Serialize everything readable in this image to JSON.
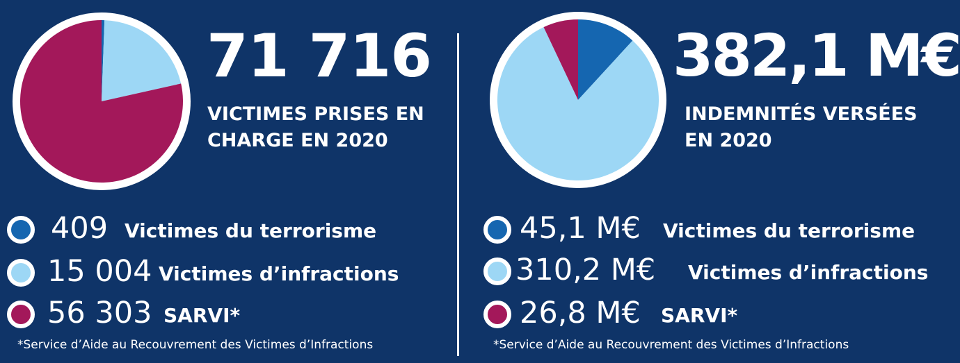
{
  "chart_data": [
    {
      "type": "pie",
      "title": "71 716",
      "subtitle_lines": [
        "VICTIMES PRISES EN",
        "CHARGE EN 2020"
      ],
      "categories": [
        "Victimes du terrorisme",
        "Victimes d’infractions",
        "SARVI*"
      ],
      "values": [
        409,
        15004,
        56303
      ],
      "value_labels": [
        "409",
        "15 004",
        "56 303"
      ],
      "colors": [
        "#1566b0",
        "#9dd7f5",
        "#a3185a"
      ],
      "footnote": "*Service d’Aide au Recouvrement des Victimes d’Infractions"
    },
    {
      "type": "pie",
      "title": "382,1 M€",
      "subtitle_lines": [
        "INDEMNITÉS VERSÉES",
        "EN 2020"
      ],
      "categories": [
        "Victimes du terrorisme",
        "Victimes d’infractions",
        "SARVI*"
      ],
      "values": [
        45.1,
        310.2,
        26.8
      ],
      "value_labels": [
        "45,1 M€",
        "310,2 M€",
        "26,8 M€"
      ],
      "colors": [
        "#1566b0",
        "#9dd7f5",
        "#a3185a"
      ],
      "footnote": "*Service d’Aide au Recouvrement des Victimes d’Infractions"
    }
  ],
  "colors": {
    "background": "#0f3468",
    "ring": "#ffffff"
  }
}
